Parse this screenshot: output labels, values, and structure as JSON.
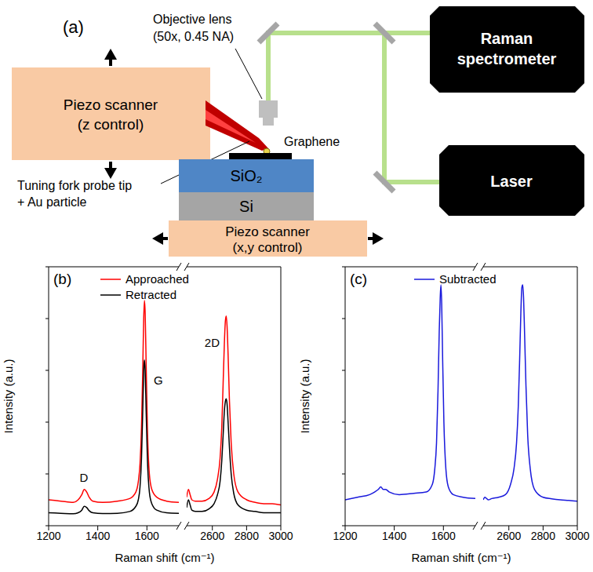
{
  "diagram": {
    "label": "(a)",
    "objective": [
      "Objective lens",
      "(50x, 0.45 NA)"
    ],
    "z_scanner": [
      "Piezo scanner",
      "(z control)"
    ],
    "probe": [
      "Tuning fork probe tip",
      "+ Au particle"
    ],
    "sample": "Graphene",
    "layers": [
      "SiO₂",
      "Si"
    ],
    "xy_scanner": [
      "Piezo scanner",
      "(x,y control)"
    ],
    "spectrometer": [
      "Raman",
      "spectrometer"
    ],
    "laser": "Laser"
  },
  "chart_data": [
    {
      "panel": "(b)",
      "type": "line",
      "x_label": "Raman shift (cm⁻¹)",
      "y_label": "Intensity (a.u.)",
      "ylim": [
        0,
        100
      ],
      "yticks": [
        0,
        20,
        40,
        60,
        80,
        100
      ],
      "tick_labels": "x",
      "legend": "upper left",
      "annotations": [
        "D",
        "G",
        "2D"
      ],
      "segments": [
        {
          "xlim": [
            1200,
            1730
          ],
          "xticks": [
            1200,
            1400,
            1600
          ],
          "x": [
            1200,
            1250,
            1300,
            1320,
            1335,
            1345,
            1355,
            1365,
            1380,
            1420,
            1480,
            1530,
            1555,
            1565,
            1572,
            1578,
            1583,
            1587,
            1590,
            1593,
            1597,
            1602,
            1610,
            1620,
            1640,
            1680,
            1730
          ],
          "series": [
            {
              "name": "Approached",
              "color": "#ff0000",
              "values": [
                10,
                9.5,
                9,
                10,
                12,
                14,
                13,
                11,
                9.5,
                9,
                9.5,
                10.5,
                13,
                17,
                24,
                38,
                60,
                80,
                87,
                82,
                62,
                38,
                20,
                14,
                11,
                9.5,
                9
              ]
            },
            {
              "name": "Retracted",
              "color": "#000000",
              "values": [
                5,
                4.8,
                4.6,
                5,
                6,
                7.5,
                7,
                5.8,
                5,
                4.7,
                4.8,
                5.5,
                7.5,
                10,
                15,
                26,
                44,
                60,
                64,
                60,
                44,
                26,
                13,
                8.5,
                6,
                5,
                4.8
              ]
            }
          ]
        },
        {
          "xlim": [
            2450,
            3000
          ],
          "xticks": [
            2600,
            2800,
            3000
          ],
          "x": [
            2450,
            2460,
            2470,
            2480,
            2500,
            2540,
            2580,
            2610,
            2630,
            2645,
            2655,
            2663,
            2670,
            2676,
            2681,
            2686,
            2692,
            2700,
            2710,
            2725,
            2750,
            2800,
            2850,
            2900,
            2950,
            3000
          ],
          "series": [
            {
              "name": "Approached",
              "color": "#ff0000",
              "values": [
                11,
                14,
                12,
                10,
                9.5,
                9.5,
                10.5,
                13,
                18,
                26,
                38,
                55,
                70,
                79,
                81,
                77,
                66,
                48,
                32,
                20,
                13,
                10,
                9,
                8.5,
                8.5,
                8
              ]
            },
            {
              "name": "Retracted",
              "color": "#000000",
              "values": [
                7,
                10,
                8,
                6,
                5.5,
                5.5,
                6.5,
                8.5,
                12,
                17,
                25,
                35,
                44,
                48,
                49,
                47,
                40,
                30,
                20,
                12.5,
                8,
                6,
                5.5,
                5,
                5,
                5
              ]
            }
          ]
        }
      ]
    },
    {
      "panel": "(c)",
      "type": "line",
      "x_label": "Raman shift (cm⁻¹)",
      "y_label": "Intensity (a.u.)",
      "ylim": [
        0,
        100
      ],
      "yticks": [
        0,
        20,
        40,
        60,
        80,
        100
      ],
      "tick_labels": "x",
      "legend": "upper left",
      "segments": [
        {
          "xlim": [
            1200,
            1730
          ],
          "xticks": [
            1200,
            1400,
            1600
          ],
          "x": [
            1200,
            1250,
            1300,
            1320,
            1335,
            1345,
            1355,
            1365,
            1380,
            1420,
            1480,
            1530,
            1555,
            1565,
            1572,
            1578,
            1583,
            1587,
            1590,
            1593,
            1597,
            1602,
            1610,
            1620,
            1640,
            1680,
            1730
          ],
          "series": [
            {
              "name": "Subtracted",
              "color": "#1a1adc",
              "values": [
                10,
                11,
                12,
                13,
                14,
                15,
                14,
                14,
                13,
                12,
                12.5,
                13,
                16,
                22,
                32,
                52,
                75,
                88,
                93,
                86,
                64,
                40,
                22,
                15,
                12,
                11,
                10.5
              ]
            }
          ]
        },
        {
          "xlim": [
            2450,
            3000
          ],
          "xticks": [
            2600,
            2800,
            3000
          ],
          "x": [
            2450,
            2460,
            2470,
            2480,
            2500,
            2540,
            2580,
            2610,
            2630,
            2645,
            2655,
            2663,
            2670,
            2676,
            2681,
            2686,
            2692,
            2700,
            2710,
            2725,
            2750,
            2800,
            2850,
            2900,
            2950,
            3000
          ],
          "series": [
            {
              "name": "Subtracted",
              "color": "#1a1adc",
              "values": [
                10,
                11,
                10.5,
                10,
                10.5,
                11,
                12,
                16,
                22,
                32,
                46,
                64,
                82,
                92,
                93,
                88,
                74,
                54,
                35,
                22,
                14,
                11,
                10.4,
                10,
                9.8,
                9.5
              ]
            }
          ]
        }
      ]
    }
  ]
}
